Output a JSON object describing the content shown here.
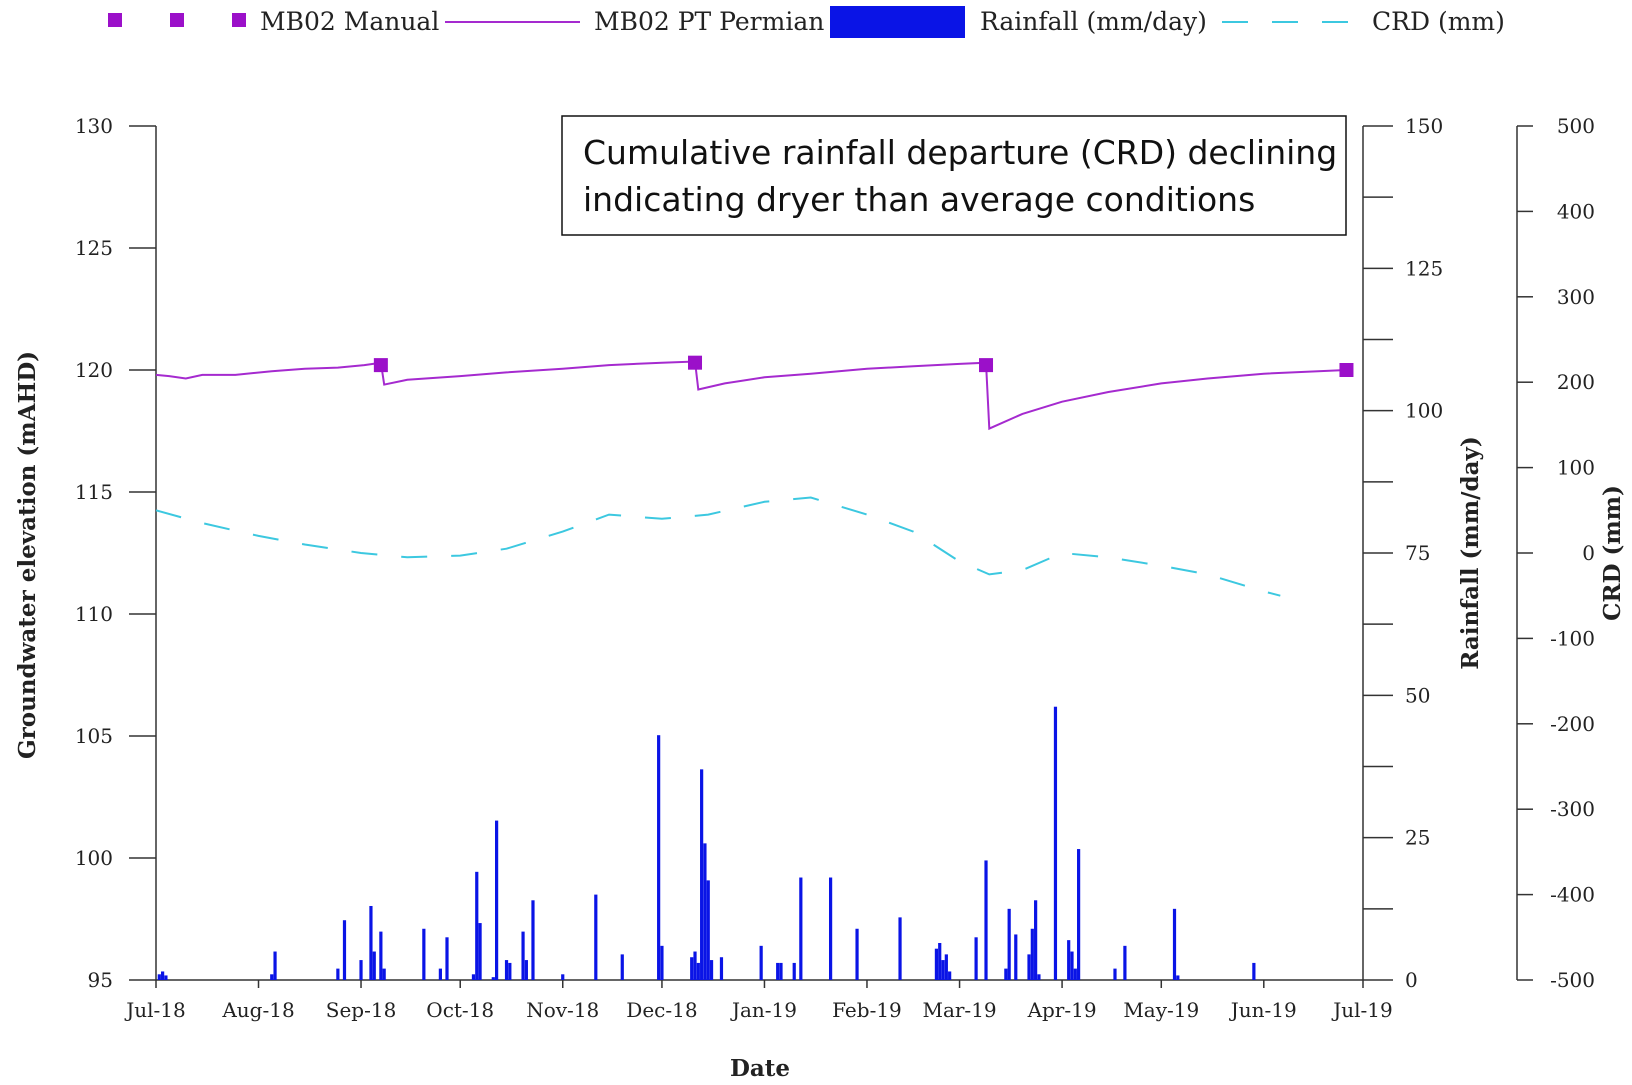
{
  "chart_data": {
    "type": "line",
    "annotation": {
      "lines": [
        "Cumulative rainfall departure (CRD) declining",
        "indicating dryer than average conditions"
      ]
    },
    "legend": {
      "placement": "top",
      "entries": [
        {
          "label": "MB02 Manual",
          "kind": "marker",
          "color": "#9B10C9"
        },
        {
          "label": "MB02 PT Permian",
          "kind": "line",
          "color": "#A52ACF"
        },
        {
          "label": "Rainfall (mm/day)",
          "kind": "bar",
          "color": "#0A14E6"
        },
        {
          "label": "CRD (mm)",
          "kind": "dash",
          "color": "#3CC8E0"
        }
      ]
    },
    "xlabel": "Date",
    "xtick_labels": [
      "Jul-18",
      "Aug-18",
      "Sep-18",
      "Oct-18",
      "Nov-18",
      "Dec-18",
      "Jan-19",
      "Feb-19",
      "Mar-19",
      "Apr-19",
      "May-19",
      "Jun-19",
      "Jul-19"
    ],
    "y_left": {
      "label": "Groundwater elevation (mAHD)",
      "range": [
        95,
        130
      ],
      "ticks": [
        "95",
        "100",
        "105",
        "110",
        "115",
        "120",
        "125",
        "130"
      ]
    },
    "y_rain": {
      "label": "Rainfall (mm/day)",
      "range": [
        0,
        150
      ],
      "ticks": [
        "0",
        "25",
        "50",
        "75",
        "100",
        "125",
        "150"
      ]
    },
    "y_crd": {
      "label": "CRD (mm)",
      "range": [
        -500,
        500
      ],
      "ticks": [
        "-500",
        "-400",
        "-300",
        "-200",
        "-100",
        "0",
        "100",
        "200",
        "300",
        "400",
        "500"
      ]
    },
    "grid": false,
    "series": [
      {
        "name": "MB02 Manual",
        "type": "scatter",
        "axis": "left",
        "color": "#9B10C9",
        "points": [
          [
            "2018-09-07",
            120.2
          ],
          [
            "2018-12-11",
            120.3
          ],
          [
            "2019-03-09",
            120.2
          ],
          [
            "2019-06-26",
            120.0
          ]
        ]
      },
      {
        "name": "MB02 PT Permian",
        "type": "line",
        "axis": "left",
        "color": "#A52ACF",
        "points": [
          [
            "2018-07-01",
            119.8
          ],
          [
            "2018-07-05",
            119.75
          ],
          [
            "2018-07-10",
            119.65
          ],
          [
            "2018-07-15",
            119.8
          ],
          [
            "2018-07-25",
            119.8
          ],
          [
            "2018-08-05",
            119.95
          ],
          [
            "2018-08-15",
            120.05
          ],
          [
            "2018-08-25",
            120.1
          ],
          [
            "2018-09-02",
            120.2
          ],
          [
            "2018-09-07",
            120.3
          ],
          [
            "2018-09-08",
            119.4
          ],
          [
            "2018-09-15",
            119.6
          ],
          [
            "2018-10-01",
            119.75
          ],
          [
            "2018-10-15",
            119.9
          ],
          [
            "2018-11-01",
            120.05
          ],
          [
            "2018-11-15",
            120.2
          ],
          [
            "2018-12-01",
            120.3
          ],
          [
            "2018-12-11",
            120.35
          ],
          [
            "2018-12-12",
            119.2
          ],
          [
            "2018-12-20",
            119.45
          ],
          [
            "2019-01-01",
            119.7
          ],
          [
            "2019-01-15",
            119.85
          ],
          [
            "2019-02-01",
            120.05
          ],
          [
            "2019-02-15",
            120.15
          ],
          [
            "2019-03-01",
            120.25
          ],
          [
            "2019-03-09",
            120.3
          ],
          [
            "2019-03-10",
            117.6
          ],
          [
            "2019-03-20",
            118.2
          ],
          [
            "2019-04-01",
            118.7
          ],
          [
            "2019-04-15",
            119.1
          ],
          [
            "2019-05-01",
            119.45
          ],
          [
            "2019-05-15",
            119.65
          ],
          [
            "2019-06-01",
            119.85
          ],
          [
            "2019-06-26",
            120.0
          ]
        ]
      },
      {
        "name": "Rainfall (mm/day)",
        "type": "bar",
        "axis": "rain",
        "color": "#0A14E6",
        "points": [
          [
            "2018-07-02",
            1
          ],
          [
            "2018-07-03",
            1.5
          ],
          [
            "2018-07-04",
            0.8
          ],
          [
            "2018-08-05",
            1
          ],
          [
            "2018-08-06",
            5
          ],
          [
            "2018-08-25",
            2
          ],
          [
            "2018-08-27",
            10.5
          ],
          [
            "2018-09-01",
            3.5
          ],
          [
            "2018-09-04",
            13
          ],
          [
            "2018-09-05",
            5
          ],
          [
            "2018-09-07",
            8.5
          ],
          [
            "2018-09-08",
            2
          ],
          [
            "2018-09-20",
            9
          ],
          [
            "2018-09-25",
            2
          ],
          [
            "2018-09-27",
            7.5
          ],
          [
            "2018-10-05",
            1
          ],
          [
            "2018-10-06",
            19
          ],
          [
            "2018-10-07",
            10
          ],
          [
            "2018-10-11",
            0.5
          ],
          [
            "2018-10-12",
            28
          ],
          [
            "2018-10-15",
            3.5
          ],
          [
            "2018-10-16",
            3
          ],
          [
            "2018-10-20",
            8.5
          ],
          [
            "2018-10-21",
            3.5
          ],
          [
            "2018-10-23",
            14
          ],
          [
            "2018-11-01",
            1
          ],
          [
            "2018-11-11",
            15
          ],
          [
            "2018-11-19",
            4.5
          ],
          [
            "2018-11-30",
            43
          ],
          [
            "2018-12-01",
            6
          ],
          [
            "2018-12-10",
            4
          ],
          [
            "2018-12-11",
            5
          ],
          [
            "2018-12-12",
            3
          ],
          [
            "2018-12-13",
            37
          ],
          [
            "2018-12-14",
            24
          ],
          [
            "2018-12-15",
            17.5
          ],
          [
            "2018-12-16",
            3.5
          ],
          [
            "2018-12-19",
            4
          ],
          [
            "2018-12-31",
            6
          ],
          [
            "2019-01-05",
            3
          ],
          [
            "2019-01-06",
            3
          ],
          [
            "2019-01-10",
            3
          ],
          [
            "2019-01-12",
            18
          ],
          [
            "2019-01-21",
            18
          ],
          [
            "2019-01-29",
            9
          ],
          [
            "2019-02-11",
            11
          ],
          [
            "2019-02-22",
            5.5
          ],
          [
            "2019-02-23",
            6.5
          ],
          [
            "2019-02-24",
            3.5
          ],
          [
            "2019-02-25",
            4.5
          ],
          [
            "2019-02-26",
            1.5
          ],
          [
            "2019-03-06",
            7.5
          ],
          [
            "2019-03-09",
            21
          ],
          [
            "2019-03-15",
            2
          ],
          [
            "2019-03-16",
            12.5
          ],
          [
            "2019-03-18",
            8
          ],
          [
            "2019-03-22",
            4.5
          ],
          [
            "2019-03-23",
            9
          ],
          [
            "2019-03-24",
            14
          ],
          [
            "2019-03-25",
            1
          ],
          [
            "2019-03-30",
            48
          ],
          [
            "2019-04-03",
            7
          ],
          [
            "2019-04-04",
            5
          ],
          [
            "2019-04-05",
            2
          ],
          [
            "2019-04-06",
            23
          ],
          [
            "2019-04-17",
            2
          ],
          [
            "2019-04-20",
            6
          ],
          [
            "2019-05-05",
            12.5
          ],
          [
            "2019-05-06",
            0.8
          ],
          [
            "2019-05-29",
            3
          ]
        ]
      },
      {
        "name": "CRD (mm)",
        "type": "line",
        "axis": "crd",
        "color": "#3CC8E0",
        "style": "dashed",
        "points": [
          [
            "2018-07-01",
            50
          ],
          [
            "2018-07-15",
            35
          ],
          [
            "2018-08-01",
            20
          ],
          [
            "2018-08-15",
            10
          ],
          [
            "2018-09-01",
            0
          ],
          [
            "2018-09-15",
            -5
          ],
          [
            "2018-10-01",
            -3
          ],
          [
            "2018-10-15",
            5
          ],
          [
            "2018-11-01",
            25
          ],
          [
            "2018-11-15",
            45
          ],
          [
            "2018-12-01",
            40
          ],
          [
            "2018-12-15",
            45
          ],
          [
            "2019-01-01",
            60
          ],
          [
            "2019-01-15",
            65
          ],
          [
            "2019-02-01",
            45
          ],
          [
            "2019-02-15",
            25
          ],
          [
            "2019-03-01",
            -10
          ],
          [
            "2019-03-10",
            -25
          ],
          [
            "2019-03-20",
            -20
          ],
          [
            "2019-04-01",
            0
          ],
          [
            "2019-04-15",
            -5
          ],
          [
            "2019-05-01",
            -15
          ],
          [
            "2019-05-15",
            -25
          ],
          [
            "2019-06-01",
            -45
          ],
          [
            "2019-06-06",
            -50
          ]
        ]
      }
    ]
  }
}
